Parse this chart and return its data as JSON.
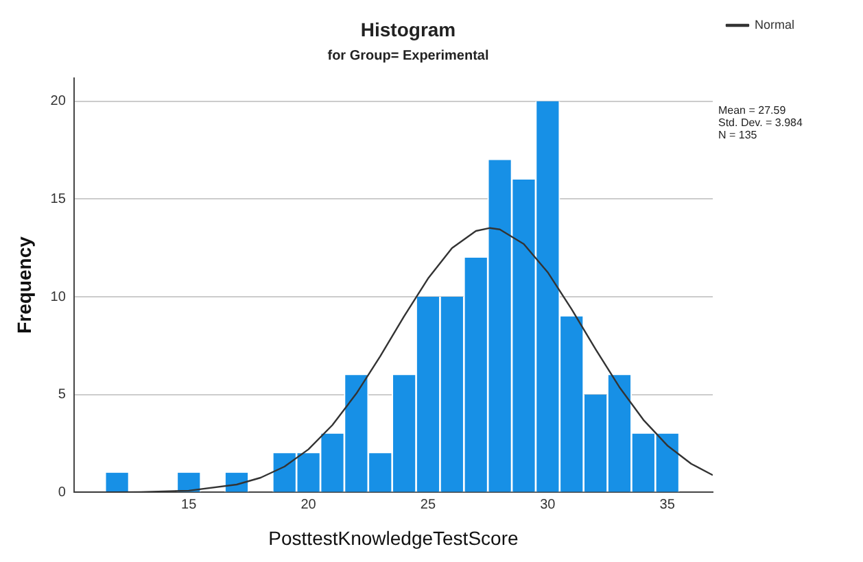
{
  "chart_data": {
    "type": "histogram",
    "title": "Histogram",
    "subtitle": "for Group= Experimental",
    "xlabel": "PosttestKnowledgeTestScore",
    "ylabel": "Frequency",
    "bins": [
      11.5,
      12.5,
      13.5,
      14.5,
      15.5,
      16.5,
      17.5,
      18.5,
      19.5,
      20.5,
      21.5,
      22.5,
      23.5,
      24.5,
      25.5,
      26.5,
      27.5,
      28.5,
      29.5,
      30.5,
      31.5,
      32.5,
      33.5,
      34.5,
      35.5
    ],
    "values": [
      1,
      0,
      0,
      1,
      0,
      1,
      0,
      2,
      2,
      3,
      6,
      2,
      6,
      10,
      10,
      12,
      17,
      16,
      20,
      9,
      5,
      6,
      3,
      3
    ],
    "color": "#1790e6",
    "series": [
      {
        "type": "line",
        "name": "Normal",
        "color": "#333333",
        "x": [
          10.2,
          11,
          13,
          15,
          17,
          18,
          19,
          20,
          21,
          22,
          23,
          24,
          25,
          26,
          27,
          27.59,
          28,
          29,
          30,
          31,
          32,
          33,
          34,
          35,
          36,
          36.9
        ],
        "values": [
          0,
          0,
          0.02,
          0.09,
          0.4,
          0.75,
          1.32,
          2.2,
          3.44,
          5.05,
          6.96,
          9.01,
          10.94,
          12.49,
          13.37,
          13.52,
          13.45,
          12.7,
          11.26,
          9.37,
          7.33,
          5.38,
          3.71,
          2.4,
          1.46,
          0.88
        ]
      }
    ],
    "xlim": [
      10.2,
      36.9
    ],
    "xticks": [
      15,
      20,
      25,
      30,
      35
    ],
    "ylim": [
      0,
      21.2
    ],
    "yticks": [
      0,
      5,
      10,
      15,
      20
    ],
    "grid": "y",
    "legend": "top right",
    "marker": "none",
    "line_style": "solid",
    "annotations": [
      "Mean = 27.59",
      "Std. Dev. = 3.984",
      "N = 135"
    ]
  }
}
